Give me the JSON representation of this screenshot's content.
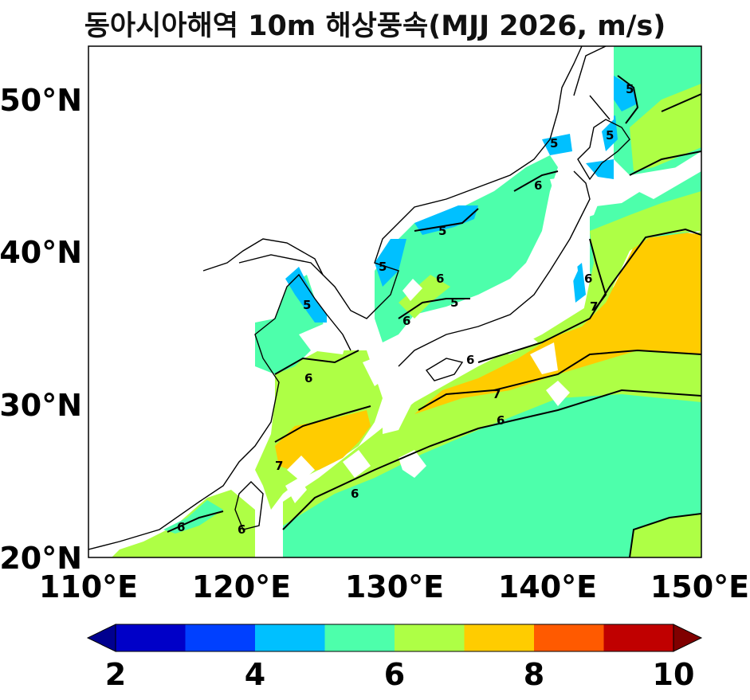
{
  "title": "동아시아해역 10m 해상풍속(MJJ 2026, m/s)",
  "map": {
    "lon_range": [
      110,
      150
    ],
    "lat_range": [
      20,
      53.5
    ],
    "x_ticks": [
      "110°E",
      "120°E",
      "130°E",
      "140°E",
      "150°E"
    ],
    "y_ticks": [
      "20°N",
      "30°N",
      "40°N",
      "50°N"
    ],
    "contour_labels": [
      "5",
      "6",
      "7"
    ]
  },
  "colorbar": {
    "bounds": [
      1,
      2,
      3,
      4,
      5,
      6,
      7,
      8,
      9,
      10,
      11
    ],
    "tick_labels": [
      "2",
      "4",
      "6",
      "8",
      "10"
    ],
    "colors": [
      "#00008f",
      "#0000c8",
      "#0040ff",
      "#00c0ff",
      "#4dffab",
      "#aeff45",
      "#ffcc00",
      "#ff5a00",
      "#c00000",
      "#800000"
    ],
    "extend": "both"
  },
  "speed_field_colors": {
    "4-5": "#00c0ff",
    "5-6": "#4dffab",
    "6-7": "#aeff45",
    "7-8": "#ffcc00"
  }
}
